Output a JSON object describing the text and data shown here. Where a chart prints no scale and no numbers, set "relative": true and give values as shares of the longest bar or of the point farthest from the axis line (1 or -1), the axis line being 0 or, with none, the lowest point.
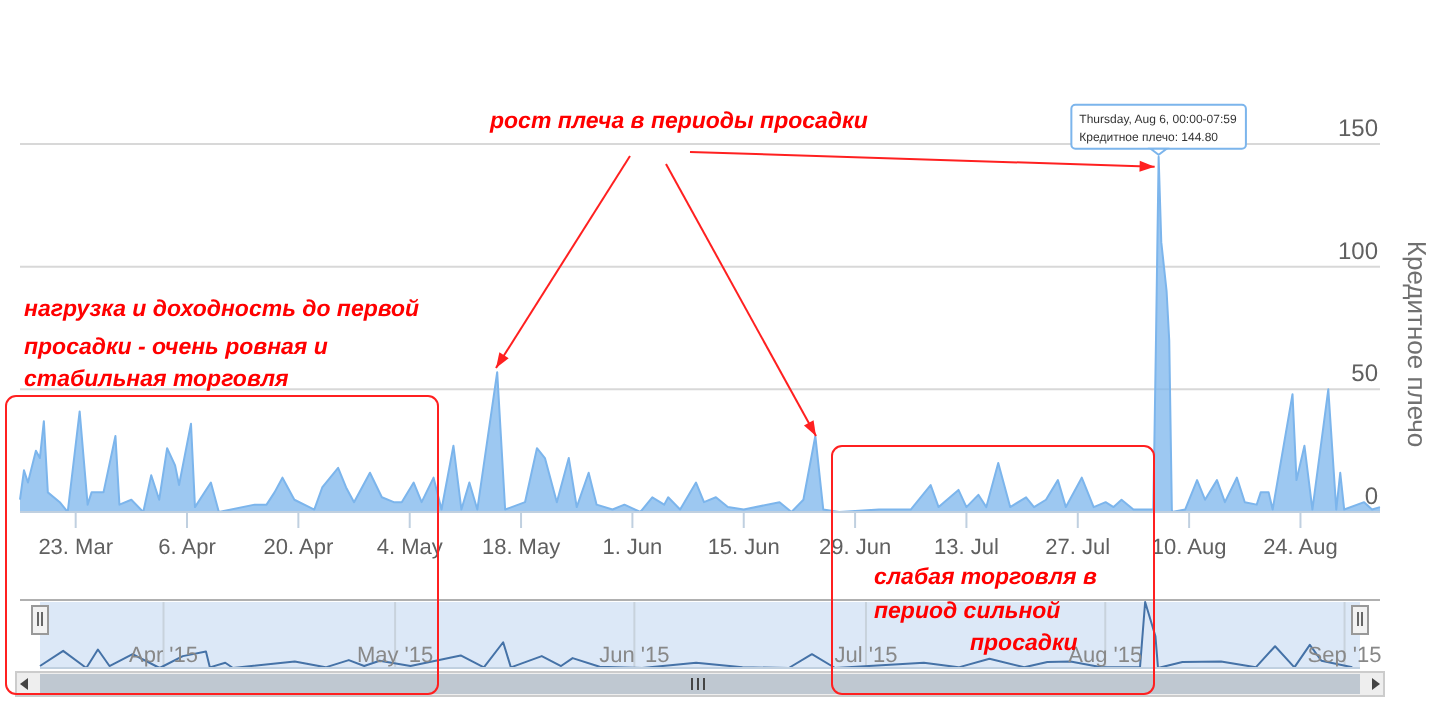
{
  "chart_data": [
    {
      "type": "area",
      "ylabel": "Кредитное плечо",
      "color": "#7cb5ec",
      "grid": "y",
      "xlim": [
        "2015-03-16",
        "2015-09-03"
      ],
      "ylim": [
        0,
        150
      ],
      "yticks": [
        0,
        50,
        100,
        150
      ],
      "xticks": [
        {
          "value": "2015-03-23",
          "label": "23. Mar"
        },
        {
          "value": "2015-04-06",
          "label": "6. Apr"
        },
        {
          "value": "2015-04-20",
          "label": "20. Apr"
        },
        {
          "value": "2015-05-04",
          "label": "4. May"
        },
        {
          "value": "2015-05-18",
          "label": "18. May"
        },
        {
          "value": "2015-06-01",
          "label": "1. Jun"
        },
        {
          "value": "2015-06-15",
          "label": "15. Jun"
        },
        {
          "value": "2015-06-29",
          "label": "29. Jun"
        },
        {
          "value": "2015-07-13",
          "label": "13. Jul"
        },
        {
          "value": "2015-07-27",
          "label": "27. Jul"
        },
        {
          "value": "2015-08-10",
          "label": "10. Aug"
        },
        {
          "value": "2015-08-24",
          "label": "24. Aug"
        }
      ],
      "x": [
        "2015-03-16",
        "2015-03-16T12:00",
        "2015-03-17",
        "2015-03-18",
        "2015-03-18T12:00",
        "2015-03-19",
        "2015-03-19T12:00",
        "2015-03-21",
        "2015-03-22",
        "2015-03-23T12:00",
        "2015-03-24T12:00",
        "2015-03-25",
        "2015-03-26T12:00",
        "2015-03-28",
        "2015-03-28T12:00",
        "2015-03-30",
        "2015-03-31T12:00",
        "2015-04-01T12:00",
        "2015-04-02T12:00",
        "2015-04-03T12:00",
        "2015-04-04T12:00",
        "2015-04-05",
        "2015-04-06T12:00",
        "2015-04-07",
        "2015-04-09",
        "2015-04-10",
        "2015-04-14T12:00",
        "2015-04-16",
        "2015-04-17",
        "2015-04-18",
        "2015-04-19T12:00",
        "2015-04-22",
        "2015-04-23",
        "2015-04-25",
        "2015-04-26",
        "2015-04-27",
        "2015-04-29",
        "2015-04-30T12:00",
        "2015-05-02",
        "2015-05-03",
        "2015-05-04T12:00",
        "2015-05-05T12:00",
        "2015-05-07",
        "2015-05-08",
        "2015-05-09T12:00",
        "2015-05-10T12:00",
        "2015-05-11T12:00",
        "2015-05-12T12:00",
        "2015-05-15",
        "2015-05-16",
        "2015-05-18T12:00",
        "2015-05-20",
        "2015-05-21",
        "2015-05-22T12:00",
        "2015-05-24",
        "2015-05-25",
        "2015-05-26T12:00",
        "2015-05-27T12:00",
        "2015-05-29T12:00",
        "2015-05-31",
        "2015-06-02",
        "2015-06-03T12:00",
        "2015-06-05",
        "2015-06-05T12:00",
        "2015-06-07",
        "2015-06-09",
        "2015-06-10",
        "2015-06-11T12:00",
        "2015-06-13",
        "2015-06-15",
        "2015-06-19T12:00",
        "2015-06-21",
        "2015-06-22T12:00",
        "2015-06-24",
        "2015-06-25",
        "2015-06-27",
        "2015-07-02",
        "2015-07-06",
        "2015-07-08T12:00",
        "2015-07-09T12:00",
        "2015-07-12",
        "2015-07-13",
        "2015-07-14T12:00",
        "2015-07-15T12:00",
        "2015-07-17",
        "2015-07-18T12:00",
        "2015-07-20T12:00",
        "2015-07-21T12:00",
        "2015-07-23",
        "2015-07-24T12:00",
        "2015-07-25T12:00",
        "2015-07-27T12:00",
        "2015-07-29",
        "2015-07-30T12:00",
        "2015-07-31T12:00",
        "2015-08-01T12:00",
        "2015-08-03",
        "2015-08-05T12:00",
        "2015-08-05T20:00",
        "2015-08-06T04:00",
        "2015-08-06T12:00",
        "2015-08-06T20:00",
        "2015-08-07T04:00",
        "2015-08-07T12:00",
        "2015-08-07T20:00",
        "2015-08-09T12:00",
        "2015-08-11",
        "2015-08-12",
        "2015-08-13T12:00",
        "2015-08-14T12:00",
        "2015-08-16",
        "2015-08-17",
        "2015-08-18T12:00",
        "2015-08-19",
        "2015-08-20",
        "2015-08-20T12:00",
        "2015-08-23",
        "2015-08-23T12:00",
        "2015-08-24T12:00",
        "2015-08-25T12:00",
        "2015-08-27T12:00",
        "2015-08-28T12:00",
        "2015-08-29",
        "2015-08-29T12:00",
        "2015-09-01",
        "2015-09-02",
        "2015-09-03"
      ],
      "values": [
        5,
        17,
        12,
        25,
        22,
        37,
        8,
        4,
        0,
        41,
        3,
        8,
        8,
        31,
        3,
        5,
        0,
        15,
        5,
        26,
        19,
        11,
        36,
        2,
        12,
        0,
        3,
        3,
        8,
        14,
        5,
        1,
        10,
        18,
        10,
        4,
        16,
        6,
        4,
        4,
        12,
        4,
        14,
        1,
        27,
        1,
        12,
        1,
        57,
        1,
        4,
        26,
        22,
        4,
        22,
        2,
        16,
        3,
        1,
        3,
        0,
        6,
        3,
        6,
        1,
        12,
        4,
        6,
        2,
        1,
        4,
        0,
        5,
        31,
        1,
        0,
        1,
        1,
        11,
        2,
        9,
        2,
        7,
        2,
        20,
        2,
        6,
        2,
        5,
        13,
        2,
        14,
        2,
        4,
        2,
        5,
        1,
        1,
        70,
        144.8,
        110,
        100,
        90,
        70,
        0,
        1,
        13,
        5,
        13,
        4,
        14,
        4,
        3,
        8,
        8,
        1,
        48,
        13,
        27,
        1,
        50,
        1,
        16,
        1,
        4,
        1,
        2
      ],
      "annotations": [
        {
          "text": "рост плеча в периоды просадки",
          "x": "2015-08-06T04:00",
          "y": 144.8
        },
        "нагрузка и доходность до первой\nпросадки - очень ровная и\nстабильная торговля",
        "слабая торговля в\nпериод сильной\nпросадки",
        {
          "text": "Thursday, Aug 6, 00:00-07:59\nКредитное плечо: 144.80",
          "x": "2015-08-06T04:00",
          "y": 144.8
        }
      ]
    },
    {
      "type": "line",
      "relative": true,
      "color": "#4572a7",
      "grid": "x",
      "tick_labels": "x",
      "xlim": [
        "2015-03-16",
        "2015-09-03"
      ],
      "xticks": [
        {
          "value": "2015-04-01",
          "label": "Apr '15"
        },
        {
          "value": "2015-05-01",
          "label": "May '15"
        },
        {
          "value": "2015-06-01",
          "label": "Jun '15"
        },
        {
          "value": "2015-07-01",
          "label": "Jul '15"
        },
        {
          "value": "2015-08-01",
          "label": "Aug '15"
        },
        {
          "value": "2015-09-01",
          "label": "Sep '15"
        }
      ],
      "bands": [
        {
          "axis": "x",
          "from": "2015-03-16",
          "to": "2015-09-03",
          "color": "#dce8f7"
        }
      ],
      "x": [
        "2015-03-16",
        "2015-03-19",
        "2015-03-22",
        "2015-03-23T12:00",
        "2015-03-25",
        "2015-03-28",
        "2015-03-31T12:00",
        "2015-04-03T12:00",
        "2015-04-06T12:00",
        "2015-04-07",
        "2015-04-09",
        "2015-04-10",
        "2015-04-18",
        "2015-04-22",
        "2015-04-25",
        "2015-04-27",
        "2015-04-29",
        "2015-05-03",
        "2015-05-09T12:00",
        "2015-05-12T12:00",
        "2015-05-15",
        "2015-05-16",
        "2015-05-20",
        "2015-05-22T12:00",
        "2015-05-24",
        "2015-05-27T12:00",
        "2015-06-02",
        "2015-06-09",
        "2015-06-15",
        "2015-06-21",
        "2015-06-24",
        "2015-06-27",
        "2015-07-08T12:00",
        "2015-07-13",
        "2015-07-17",
        "2015-07-21T12:00",
        "2015-07-24T12:00",
        "2015-07-27T12:00",
        "2015-07-31T12:00",
        "2015-08-05T12:00",
        "2015-08-06T04:00",
        "2015-08-07T12:00",
        "2015-08-07T20:00",
        "2015-08-11",
        "2015-08-16",
        "2015-08-20T12:00",
        "2015-08-23",
        "2015-08-25T12:00",
        "2015-08-27T12:00",
        "2015-08-29",
        "2015-09-02"
      ],
      "values": [
        0.03,
        0.26,
        0,
        0.28,
        0.03,
        0.21,
        0,
        0.18,
        0.25,
        0.01,
        0.08,
        0,
        0.1,
        0.01,
        0.12,
        0.03,
        0.11,
        0.03,
        0.19,
        0.01,
        0.39,
        0.01,
        0.18,
        0.03,
        0.15,
        0.02,
        0,
        0.08,
        0.01,
        0,
        0.21,
        0,
        0.08,
        0.01,
        0.14,
        0.01,
        0.09,
        0.1,
        0.01,
        0.01,
        1,
        0.48,
        0,
        0.09,
        0.1,
        0.01,
        0.33,
        0.01,
        0.35,
        0.11,
        0.01
      ]
    }
  ]
}
